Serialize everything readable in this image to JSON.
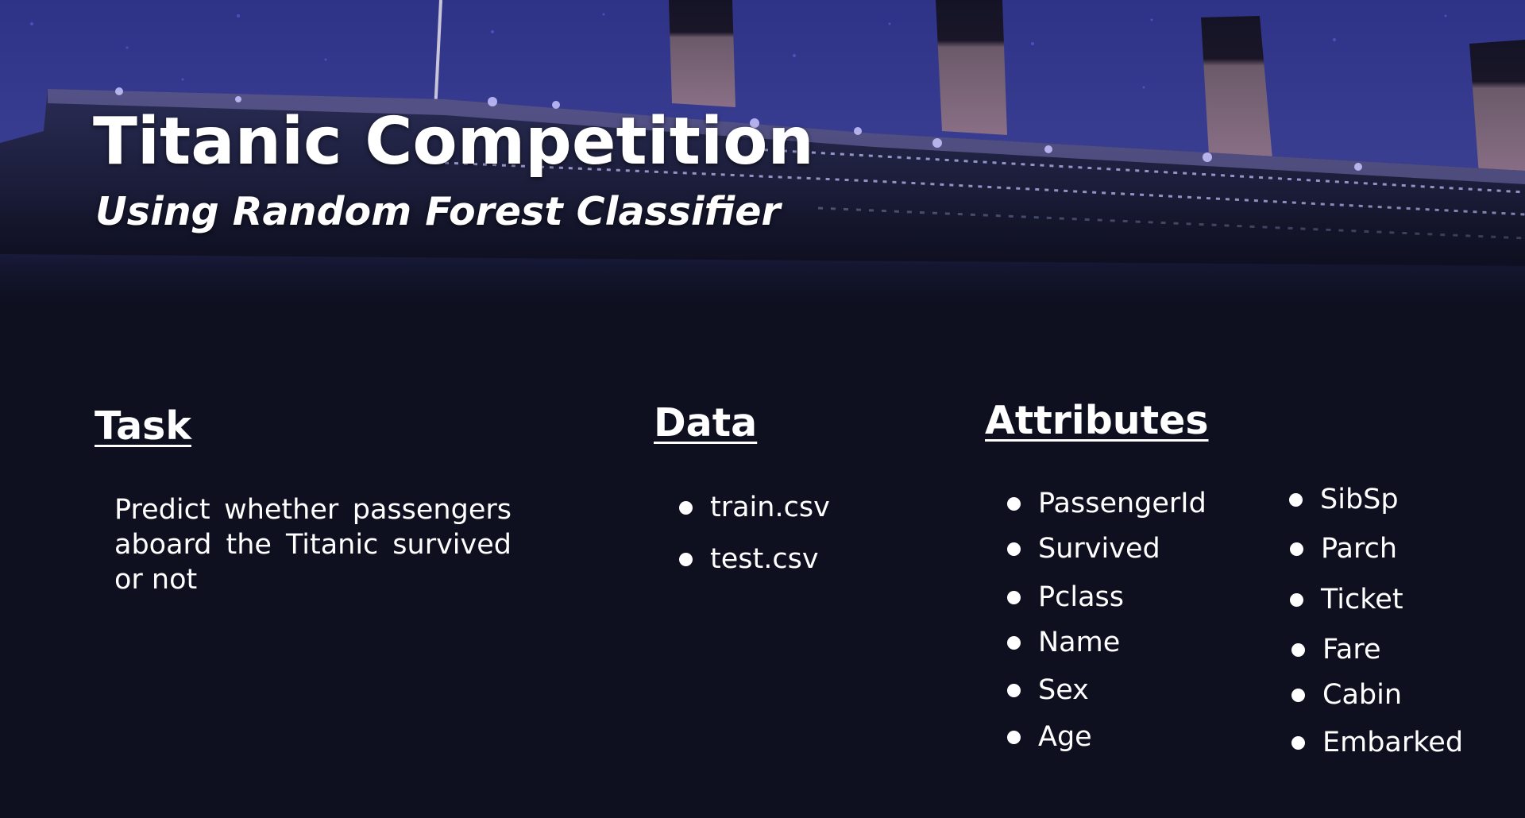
{
  "slide": {
    "title": "Titanic Competition",
    "subtitle": "Using Random Forest Classifier"
  },
  "task": {
    "heading": "Task",
    "text": "Predict whether passengers aboard the Titanic survived or not"
  },
  "data": {
    "heading": "Data",
    "files": [
      "train.csv",
      "test.csv"
    ]
  },
  "attributes": {
    "heading": "Attributes",
    "column1": [
      "PassengerId",
      "Survived",
      "Pclass",
      "Name",
      "Sex",
      "Age"
    ],
    "column2": [
      "SibSp",
      "Parch",
      "Ticket",
      "Fare",
      "Cabin",
      "Embarked"
    ]
  },
  "colors": {
    "background": "#0e1020",
    "sky": "#3a3f8f",
    "text": "#ffffff"
  }
}
